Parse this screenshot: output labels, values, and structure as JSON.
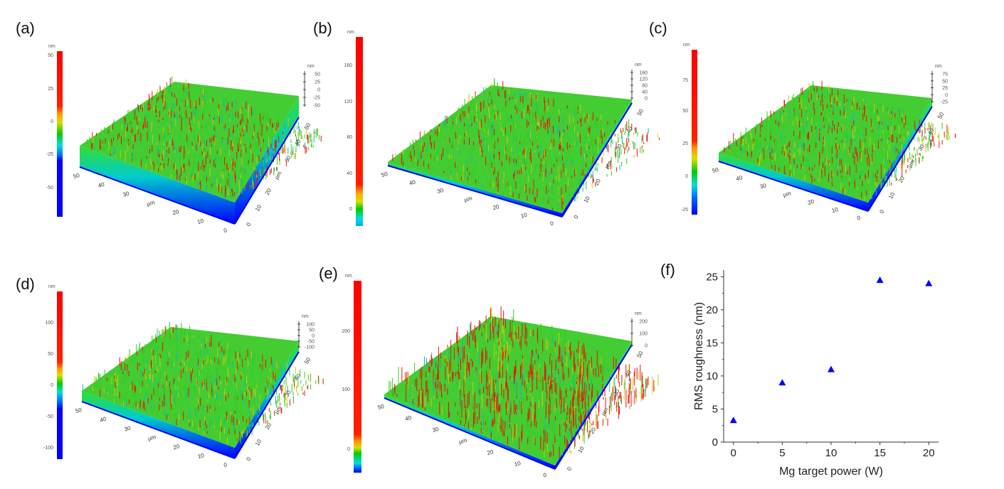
{
  "panels": [
    {
      "label": "(a)",
      "unit": "nm",
      "colorbar_ticks": [
        "50",
        "25",
        "0",
        "-25",
        "-50"
      ],
      "z_axis_ticks": [
        "50",
        "25",
        "0",
        "-25",
        "-50"
      ],
      "front_axis_ticks": [
        "50",
        "40",
        "30",
        "µm",
        "20",
        "10",
        "0"
      ],
      "side_axis_ticks": [
        "0",
        "10",
        "20",
        "µm",
        "30",
        "40",
        "50"
      ]
    },
    {
      "label": "(b)",
      "unit": "nm",
      "colorbar_ticks": [
        "160",
        "120",
        "80",
        "40",
        "0"
      ],
      "z_axis_ticks": [
        "160",
        "120",
        "80",
        "40",
        "0"
      ],
      "front_axis_ticks": [
        "50",
        "40",
        "30",
        "µm",
        "20",
        "10",
        "0"
      ],
      "side_axis_ticks": [
        "0",
        "10",
        "20",
        "µm",
        "30",
        "40",
        "50"
      ]
    },
    {
      "label": "(c)",
      "unit": "nm",
      "colorbar_ticks": [
        "75",
        "50",
        "25",
        "0",
        "-25"
      ],
      "z_axis_ticks": [
        "75",
        "50",
        "25",
        "0",
        "-25"
      ],
      "front_axis_ticks": [
        "50",
        "40",
        "30",
        "µm",
        "20",
        "10",
        "0"
      ],
      "side_axis_ticks": [
        "0",
        "10",
        "20",
        "µm",
        "30",
        "40",
        "50"
      ]
    },
    {
      "label": "(d)",
      "unit": "nm",
      "colorbar_ticks": [
        "100",
        "50",
        "0",
        "-50",
        "-100"
      ],
      "z_axis_ticks": [
        "100",
        "50",
        "0",
        "-50",
        "-100"
      ],
      "front_axis_ticks": [
        "50",
        "40",
        "30",
        "µm",
        "20",
        "10",
        "0"
      ],
      "side_axis_ticks": [
        "0",
        "10",
        "20",
        "µm",
        "30",
        "40",
        "50"
      ]
    },
    {
      "label": "(e)",
      "unit": "nm",
      "colorbar_ticks": [
        "200",
        "100",
        "0"
      ],
      "z_axis_ticks": [
        "200",
        "100",
        "0"
      ],
      "front_axis_ticks": [
        "50",
        "40",
        "30",
        "µm",
        "20",
        "10",
        "0"
      ],
      "side_axis_ticks": [
        "0",
        "10",
        "20",
        "µm",
        "30",
        "40",
        "50"
      ]
    }
  ],
  "chart_data": {
    "panel_label": "(f)",
    "type": "scatter",
    "xlabel": "Mg target power (W)",
    "ylabel": "RMS roughness (nm)",
    "x": [
      0,
      5,
      10,
      15,
      20
    ],
    "y": [
      3.3,
      9.0,
      11.0,
      24.5,
      24.0
    ],
    "xlim": [
      -1,
      21
    ],
    "ylim": [
      0,
      26
    ],
    "xticks": [
      "0",
      "5",
      "10",
      "15",
      "20"
    ],
    "yticks": [
      "0",
      "5",
      "10",
      "15",
      "20",
      "25"
    ],
    "marker": "triangle",
    "marker_color": "#0000ff",
    "grid": false
  },
  "colors": {
    "high": "#ff0000",
    "mid": "#00cc00",
    "low": "#0000ff"
  }
}
